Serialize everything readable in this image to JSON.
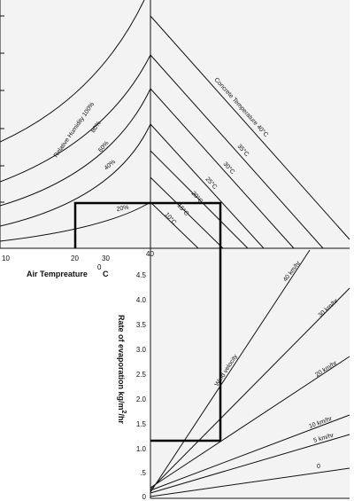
{
  "humidity": {
    "label": "Relative Humidity 100%",
    "curves": [
      "80%",
      "60%",
      "40%",
      "20%"
    ]
  },
  "concrete": {
    "label": "Concrete Temperature 40°C",
    "lines": [
      "35°C",
      "30°C",
      "25°C",
      "20°C",
      "15°C",
      "10°C"
    ]
  },
  "air_temp": {
    "ticks": [
      "10",
      "20",
      "30",
      "40"
    ],
    "label": "Air Tempreature",
    "sup": "0",
    "unit": "C"
  },
  "evaporation": {
    "label": "Rate of evaporation kg/m",
    "sup": "2",
    "unit": "/hr",
    "ticks": [
      "4.5",
      "4.0",
      "3.5",
      "3.0",
      "2.5",
      "2.0",
      "1.5",
      "1.0",
      ".5",
      "0"
    ]
  },
  "wind": {
    "label": "Wind velocity",
    "lines": [
      "40 km/hr",
      "30 km/hr",
      "20 km/hr",
      "10 km/hr",
      "5 km/hr",
      "0"
    ]
  }
}
